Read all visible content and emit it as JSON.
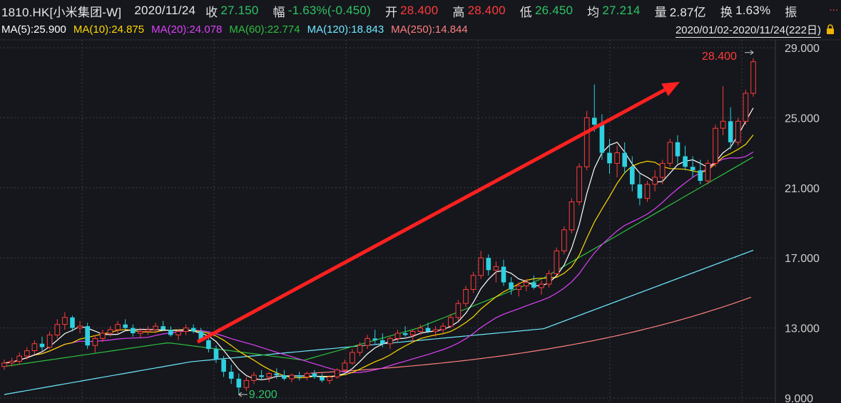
{
  "header": {
    "symbol": "1810.HK[小米集团-W]",
    "date": "2020/11/24",
    "close_label": "收",
    "close_value": "27.150",
    "change_label": "幅",
    "change_value": "-1.63%(-0.450)",
    "open_label": "开",
    "open_value": "28.400",
    "high_label": "高",
    "high_value": "28.400",
    "low_label": "低",
    "low_value": "26.450",
    "avg_label": "均",
    "avg_value": "27.214",
    "volume_label": "量",
    "volume_value": "2.87亿",
    "turnover_label": "换",
    "turnover_value": "1.63%",
    "amplitude_label": "振",
    "more_label": "..."
  },
  "ma_legend": [
    {
      "text": "MA(5):25.900",
      "color": "#ffffff"
    },
    {
      "text": "MA(10):24.875",
      "color": "#ffd800"
    },
    {
      "text": "MA(20):24.078",
      "color": "#e040fb"
    },
    {
      "text": "MA(60):22.774",
      "color": "#2fbf3f"
    },
    {
      "text": "MA(120):18.843",
      "color": "#6ee8ff"
    },
    {
      "text": "MA(250):14.844",
      "color": "#ff7f7f"
    }
  ],
  "date_range": "2020/01/02-2020/11/24(222日)",
  "chart_data": {
    "type": "candlestick",
    "y_ticks": [
      "29.000",
      "25.000",
      "21.000",
      "17.000",
      "13.000",
      "9.000"
    ],
    "ylim": [
      9,
      29
    ],
    "annotations": [
      {
        "text": "28.400",
        "kind": "high",
        "color": "#ff3b3b"
      },
      {
        "text": "9.200",
        "kind": "low",
        "color": "#2fc266"
      }
    ],
    "arrow": {
      "color": "#ff2020",
      "from": {
        "x": 0.255,
        "y": 12.2
      },
      "to": {
        "x": 0.815,
        "y": 27.3
      }
    },
    "colors": {
      "up": "#ff3b3b",
      "down": "#2fd0e0",
      "grid": "#3a3d45"
    },
    "candles": [
      [
        10.8,
        11.2,
        10.6,
        11.0
      ],
      [
        11.0,
        11.3,
        10.8,
        11.1
      ],
      [
        11.1,
        11.6,
        10.9,
        11.4
      ],
      [
        11.4,
        11.9,
        11.2,
        11.7
      ],
      [
        11.7,
        12.3,
        11.5,
        12.1
      ],
      [
        12.1,
        12.5,
        11.7,
        11.9
      ],
      [
        11.9,
        12.8,
        11.8,
        12.6
      ],
      [
        12.6,
        13.5,
        12.4,
        13.2
      ],
      [
        13.2,
        13.9,
        12.9,
        13.6
      ],
      [
        13.6,
        13.7,
        12.8,
        13.0
      ],
      [
        13.0,
        13.4,
        12.7,
        13.1
      ],
      [
        13.1,
        13.3,
        11.8,
        12.0
      ],
      [
        12.0,
        12.6,
        11.6,
        12.4
      ],
      [
        12.4,
        12.9,
        12.2,
        12.7
      ],
      [
        12.7,
        13.1,
        12.5,
        12.9
      ],
      [
        12.9,
        13.4,
        12.7,
        13.2
      ],
      [
        13.2,
        13.5,
        12.9,
        13.0
      ],
      [
        13.0,
        13.2,
        12.5,
        12.7
      ],
      [
        12.7,
        13.0,
        12.4,
        12.8
      ],
      [
        12.8,
        13.1,
        12.6,
        12.9
      ],
      [
        12.9,
        13.3,
        12.7,
        13.1
      ],
      [
        13.1,
        13.4,
        12.8,
        12.9
      ],
      [
        12.9,
        13.1,
        12.5,
        12.6
      ],
      [
        12.6,
        12.9,
        12.3,
        12.8
      ],
      [
        12.8,
        13.2,
        12.6,
        13.0
      ],
      [
        13.0,
        13.2,
        12.7,
        12.8
      ],
      [
        12.8,
        13.0,
        12.2,
        12.3
      ],
      [
        12.3,
        12.5,
        11.6,
        11.8
      ],
      [
        11.8,
        12.0,
        11.0,
        11.2
      ],
      [
        11.2,
        11.4,
        10.2,
        10.5
      ],
      [
        10.5,
        10.9,
        9.8,
        10.1
      ],
      [
        10.1,
        10.4,
        9.2,
        9.6
      ],
      [
        9.6,
        10.2,
        9.4,
        10.0
      ],
      [
        10.0,
        10.5,
        9.8,
        10.3
      ],
      [
        10.3,
        10.6,
        10.0,
        10.2
      ],
      [
        10.2,
        10.5,
        9.9,
        10.4
      ],
      [
        10.4,
        10.7,
        10.1,
        10.3
      ],
      [
        10.3,
        10.6,
        10.0,
        10.1
      ],
      [
        10.1,
        10.4,
        9.9,
        10.3
      ],
      [
        10.3,
        10.5,
        10.0,
        10.2
      ],
      [
        10.2,
        10.5,
        10.0,
        10.4
      ],
      [
        10.4,
        10.6,
        10.1,
        10.2
      ],
      [
        10.2,
        10.4,
        9.9,
        10.0
      ],
      [
        10.0,
        10.3,
        9.8,
        10.2
      ],
      [
        10.2,
        10.7,
        10.1,
        10.6
      ],
      [
        10.6,
        11.2,
        10.5,
        11.0
      ],
      [
        11.0,
        11.8,
        10.9,
        11.6
      ],
      [
        11.6,
        12.2,
        11.4,
        12.0
      ],
      [
        12.0,
        12.6,
        11.8,
        12.4
      ],
      [
        12.4,
        12.9,
        12.1,
        12.3
      ],
      [
        12.3,
        12.7,
        11.9,
        12.1
      ],
      [
        12.1,
        12.5,
        11.8,
        12.4
      ],
      [
        12.4,
        12.9,
        12.2,
        12.7
      ],
      [
        12.7,
        13.1,
        12.5,
        12.6
      ],
      [
        12.6,
        12.9,
        12.2,
        12.8
      ],
      [
        12.8,
        13.2,
        12.6,
        13.0
      ],
      [
        13.0,
        13.3,
        12.7,
        12.8
      ],
      [
        12.8,
        13.1,
        12.5,
        12.9
      ],
      [
        12.9,
        13.3,
        12.7,
        13.1
      ],
      [
        13.1,
        13.8,
        13.0,
        13.6
      ],
      [
        13.6,
        14.6,
        13.4,
        14.4
      ],
      [
        14.4,
        15.4,
        14.2,
        15.2
      ],
      [
        15.2,
        16.2,
        15.0,
        16.0
      ],
      [
        16.0,
        17.4,
        15.8,
        17.0
      ],
      [
        17.0,
        17.2,
        16.0,
        16.3
      ],
      [
        16.3,
        16.8,
        15.6,
        16.5
      ],
      [
        16.5,
        16.9,
        15.4,
        15.6
      ],
      [
        15.6,
        15.9,
        14.9,
        15.2
      ],
      [
        15.2,
        15.6,
        14.8,
        15.4
      ],
      [
        15.4,
        15.8,
        15.1,
        15.6
      ],
      [
        15.6,
        16.0,
        15.2,
        15.3
      ],
      [
        15.3,
        15.7,
        14.9,
        15.5
      ],
      [
        15.5,
        16.3,
        15.3,
        16.1
      ],
      [
        16.1,
        17.6,
        16.0,
        17.4
      ],
      [
        17.4,
        18.8,
        17.2,
        18.6
      ],
      [
        18.6,
        20.4,
        18.4,
        20.2
      ],
      [
        20.2,
        22.4,
        20.0,
        22.2
      ],
      [
        22.2,
        25.4,
        22.0,
        25.0
      ],
      [
        25.0,
        26.9,
        24.2,
        24.6
      ],
      [
        24.6,
        25.2,
        22.6,
        23.0
      ],
      [
        23.0,
        23.8,
        21.8,
        22.4
      ],
      [
        22.4,
        23.4,
        21.6,
        23.0
      ],
      [
        23.0,
        23.6,
        21.8,
        22.2
      ],
      [
        22.2,
        22.8,
        20.8,
        21.2
      ],
      [
        21.2,
        21.9,
        20.0,
        20.4
      ],
      [
        20.4,
        21.4,
        20.2,
        21.2
      ],
      [
        21.2,
        22.0,
        20.8,
        21.6
      ],
      [
        21.6,
        22.6,
        21.2,
        22.4
      ],
      [
        22.4,
        23.8,
        22.2,
        23.6
      ],
      [
        23.6,
        24.0,
        22.4,
        22.8
      ],
      [
        22.8,
        23.4,
        22.0,
        22.2
      ],
      [
        22.2,
        22.8,
        21.6,
        22.0
      ],
      [
        22.0,
        22.6,
        21.2,
        21.4
      ],
      [
        21.4,
        22.6,
        21.2,
        22.4
      ],
      [
        22.4,
        24.6,
        22.2,
        24.4
      ],
      [
        24.4,
        26.8,
        24.0,
        24.8
      ],
      [
        24.8,
        25.6,
        23.2,
        23.6
      ],
      [
        23.6,
        25.0,
        23.4,
        24.8
      ],
      [
        24.8,
        26.6,
        24.6,
        26.4
      ],
      [
        26.4,
        28.4,
        26.2,
        28.2
      ]
    ]
  }
}
